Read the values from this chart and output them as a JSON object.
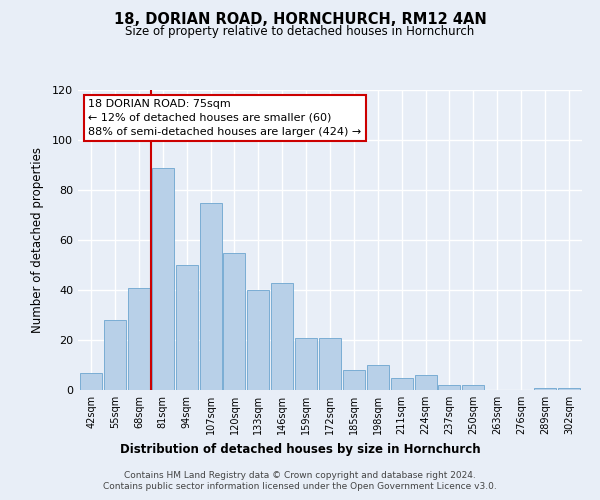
{
  "title": "18, DORIAN ROAD, HORNCHURCH, RM12 4AN",
  "subtitle": "Size of property relative to detached houses in Hornchurch",
  "xlabel": "Distribution of detached houses by size in Hornchurch",
  "ylabel": "Number of detached properties",
  "bar_labels": [
    "42sqm",
    "55sqm",
    "68sqm",
    "81sqm",
    "94sqm",
    "107sqm",
    "120sqm",
    "133sqm",
    "146sqm",
    "159sqm",
    "172sqm",
    "185sqm",
    "198sqm",
    "211sqm",
    "224sqm",
    "237sqm",
    "250sqm",
    "263sqm",
    "276sqm",
    "289sqm",
    "302sqm"
  ],
  "bar_values": [
    7,
    28,
    41,
    89,
    50,
    75,
    55,
    40,
    43,
    21,
    21,
    8,
    10,
    5,
    6,
    2,
    2,
    0,
    0,
    1,
    1
  ],
  "bar_color": "#b8d0e8",
  "bar_edge_color": "#7aadd4",
  "vline_color": "#cc0000",
  "ylim": [
    0,
    120
  ],
  "yticks": [
    0,
    20,
    40,
    60,
    80,
    100,
    120
  ],
  "annotation_title": "18 DORIAN ROAD: 75sqm",
  "annotation_line1": "← 12% of detached houses are smaller (60)",
  "annotation_line2": "88% of semi-detached houses are larger (424) →",
  "annotation_box_color": "#ffffff",
  "annotation_box_edge": "#cc0000",
  "footer1": "Contains HM Land Registry data © Crown copyright and database right 2024.",
  "footer2": "Contains public sector information licensed under the Open Government Licence v3.0.",
  "background_color": "#e8eef7"
}
